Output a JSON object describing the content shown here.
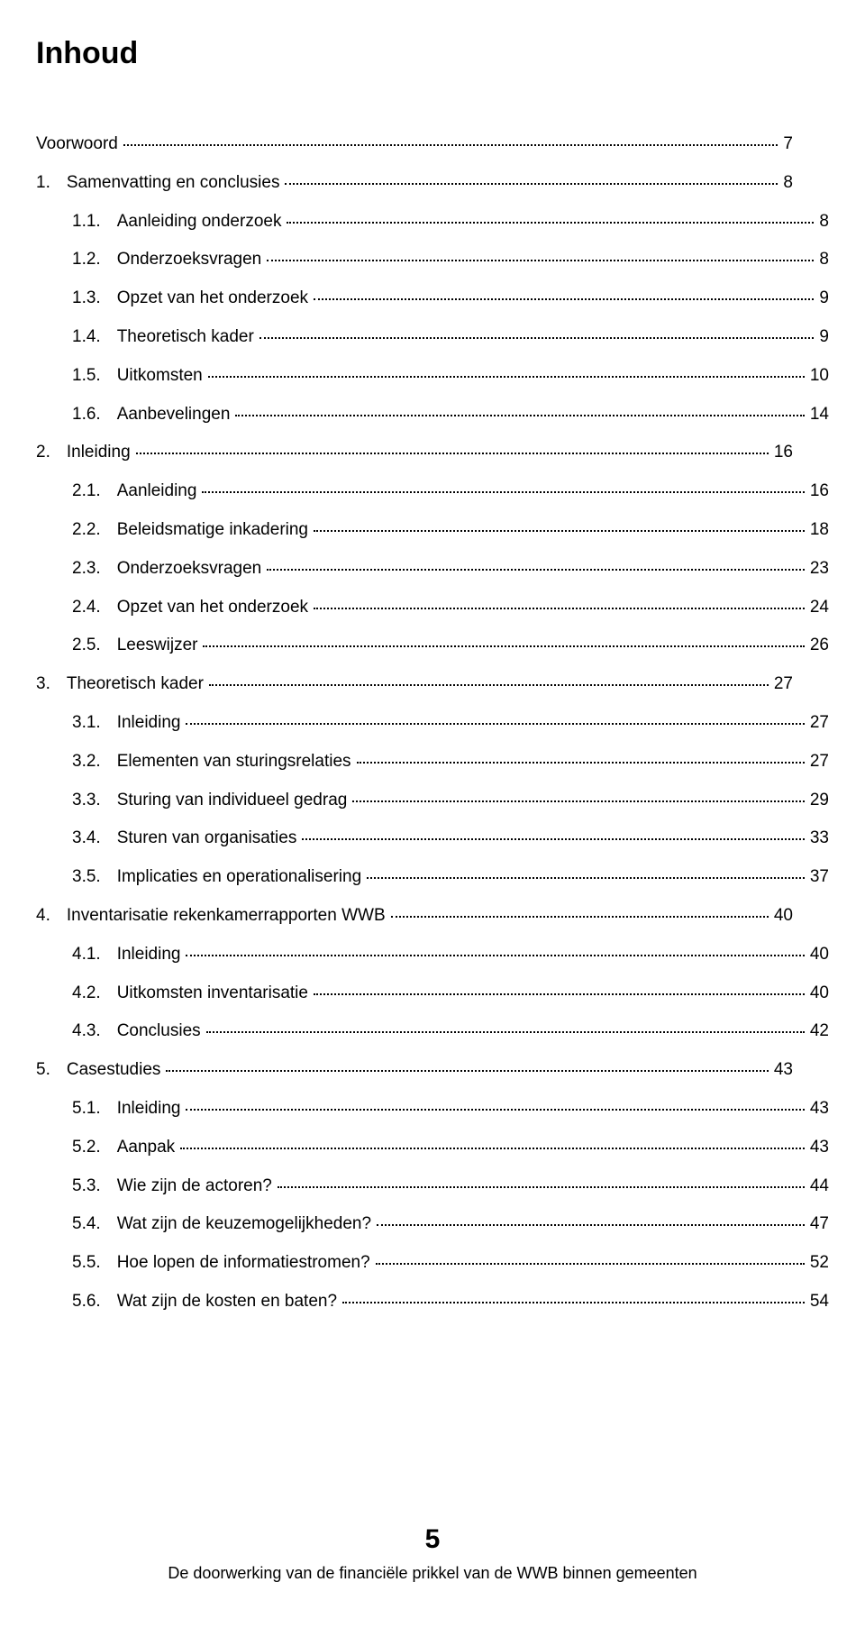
{
  "title": "Inhoud",
  "toc": [
    {
      "indent": 0,
      "num": "",
      "label": "Voorwoord",
      "page": "7"
    },
    {
      "indent": 0,
      "num": "1.",
      "label": "Samenvatting en conclusies",
      "page": "8"
    },
    {
      "indent": 1,
      "num": "1.1.",
      "label": "Aanleiding onderzoek",
      "page": "8"
    },
    {
      "indent": 1,
      "num": "1.2.",
      "label": "Onderzoeksvragen",
      "page": "8"
    },
    {
      "indent": 1,
      "num": "1.3.",
      "label": "Opzet van het onderzoek",
      "page": "9"
    },
    {
      "indent": 1,
      "num": "1.4.",
      "label": "Theoretisch kader",
      "page": "9"
    },
    {
      "indent": 1,
      "num": "1.5.",
      "label": "Uitkomsten",
      "page": "10"
    },
    {
      "indent": 1,
      "num": "1.6.",
      "label": "Aanbevelingen",
      "page": "14"
    },
    {
      "indent": 0,
      "num": "2.",
      "label": "Inleiding",
      "page": "16"
    },
    {
      "indent": 1,
      "num": "2.1.",
      "label": "Aanleiding",
      "page": "16"
    },
    {
      "indent": 1,
      "num": "2.2.",
      "label": "Beleidsmatige inkadering",
      "page": "18"
    },
    {
      "indent": 1,
      "num": "2.3.",
      "label": "Onderzoeksvragen",
      "page": "23"
    },
    {
      "indent": 1,
      "num": "2.4.",
      "label": "Opzet van het onderzoek",
      "page": "24"
    },
    {
      "indent": 1,
      "num": "2.5.",
      "label": "Leeswijzer",
      "page": "26"
    },
    {
      "indent": 0,
      "num": "3.",
      "label": "Theoretisch kader",
      "page": "27"
    },
    {
      "indent": 1,
      "num": "3.1.",
      "label": "Inleiding",
      "page": "27"
    },
    {
      "indent": 1,
      "num": "3.2.",
      "label": "Elementen van sturingsrelaties",
      "page": "27"
    },
    {
      "indent": 1,
      "num": "3.3.",
      "label": "Sturing van individueel gedrag",
      "page": "29"
    },
    {
      "indent": 1,
      "num": "3.4.",
      "label": "Sturen van organisaties",
      "page": "33"
    },
    {
      "indent": 1,
      "num": "3.5.",
      "label": "Implicaties en operationalisering",
      "page": "37"
    },
    {
      "indent": 0,
      "num": "4.",
      "label": "Inventarisatie rekenkamerrapporten WWB",
      "page": "40"
    },
    {
      "indent": 1,
      "num": "4.1.",
      "label": "Inleiding",
      "page": "40"
    },
    {
      "indent": 1,
      "num": "4.2.",
      "label": "Uitkomsten inventarisatie",
      "page": "40"
    },
    {
      "indent": 1,
      "num": "4.3.",
      "label": "Conclusies",
      "page": "42"
    },
    {
      "indent": 0,
      "num": "5.",
      "label": "Casestudies",
      "page": "43"
    },
    {
      "indent": 1,
      "num": "5.1.",
      "label": "Inleiding",
      "page": "43"
    },
    {
      "indent": 1,
      "num": "5.2.",
      "label": "Aanpak",
      "page": "43"
    },
    {
      "indent": 1,
      "num": "5.3.",
      "label": "Wie zijn de actoren?",
      "page": "44"
    },
    {
      "indent": 1,
      "num": "5.4.",
      "label": "Wat zijn de keuzemogelijkheden?",
      "page": "47"
    },
    {
      "indent": 1,
      "num": "5.5.",
      "label": "Hoe lopen de informatiestromen?",
      "page": "52"
    },
    {
      "indent": 1,
      "num": "5.6.",
      "label": "Wat zijn de kosten en baten?",
      "page": "54"
    }
  ],
  "footer": {
    "page_number": "5",
    "caption": "De doorwerking van de financiële prikkel van de WWB binnen gemeenten"
  }
}
